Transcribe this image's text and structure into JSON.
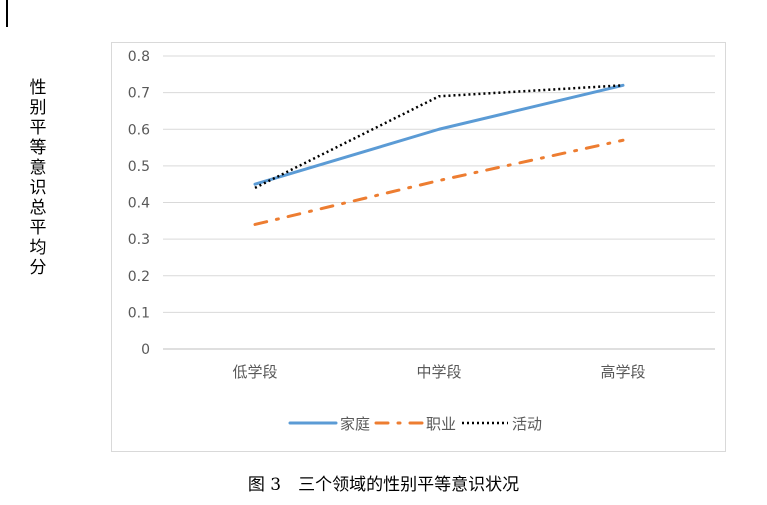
{
  "caption": "图 3　三个领域的性别平等意识状况",
  "chart_data": {
    "type": "line",
    "title": "",
    "ylabel": "性别平等意识总平均分",
    "xlabel": "",
    "categories": [
      "低学段",
      "中学段",
      "高学段"
    ],
    "ylim": [
      0,
      0.8
    ],
    "yticks": [
      "0",
      "0.1",
      "0.2",
      "0.3",
      "0.4",
      "0.5",
      "0.6",
      "0.7",
      "0.8"
    ],
    "grid": true,
    "legend_position": "bottom",
    "series": [
      {
        "name": "家庭",
        "values": [
          0.45,
          0.6,
          0.72
        ],
        "color": "#5b9bd5",
        "style": "solid"
      },
      {
        "name": "职业",
        "values": [
          0.34,
          0.46,
          0.57
        ],
        "color": "#ed7d31",
        "style": "dashdot"
      },
      {
        "name": "活动",
        "values": [
          0.44,
          0.69,
          0.72
        ],
        "color": "#000000",
        "style": "dotted"
      }
    ]
  }
}
